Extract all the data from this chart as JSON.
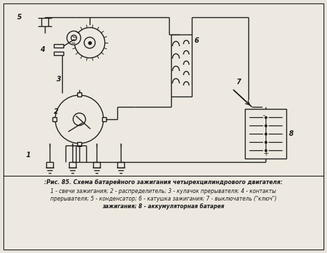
{
  "caption_line1": ":Рис. 85. Схема батарейного зажигания четырехцилиндрового двигателя:",
  "caption_line2": "1 - свечи зажигания; 2 - распределитель; 3 - кулачок прерывателя; 4 - контакты",
  "caption_line3": "прерывателя; 5 - конденсатор; 6 - катушка зажигания; 7 - выключатель (\"ключ\")",
  "caption_line4": "зажигания; 8 - аккумуляторная батарея",
  "bg_color": "#e8e4dc",
  "diagram_bg": "#ede9e0",
  "line_color": "#1a1a1a",
  "text_color": "#1a1a1a"
}
